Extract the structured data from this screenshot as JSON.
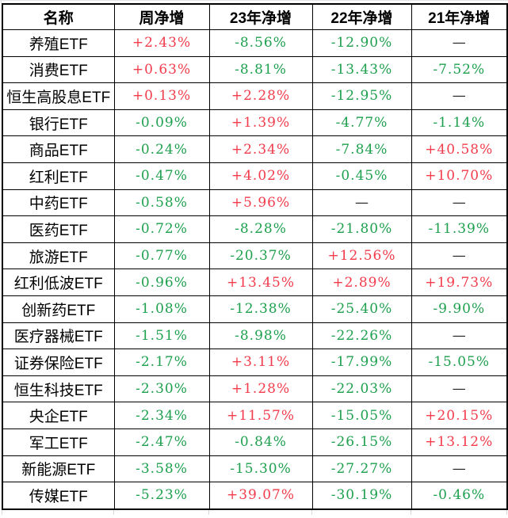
{
  "table": {
    "columns": [
      "名称",
      "周净增",
      "23年净增",
      "22年净增",
      "21年净增"
    ],
    "rows": [
      {
        "name": "养殖ETF",
        "values": [
          {
            "text": "+2.43%",
            "tone": "up"
          },
          {
            "text": "-8.56%",
            "tone": "down"
          },
          {
            "text": "-12.90%",
            "tone": "down"
          },
          {
            "text": "—",
            "tone": "none"
          }
        ]
      },
      {
        "name": "消费ETF",
        "values": [
          {
            "text": "+0.63%",
            "tone": "up"
          },
          {
            "text": "-8.81%",
            "tone": "down"
          },
          {
            "text": "-13.43%",
            "tone": "down"
          },
          {
            "text": "-7.52%",
            "tone": "down"
          }
        ]
      },
      {
        "name": "恒生高股息ETF",
        "values": [
          {
            "text": "+0.13%",
            "tone": "up"
          },
          {
            "text": "+2.28%",
            "tone": "up"
          },
          {
            "text": "-12.95%",
            "tone": "down"
          },
          {
            "text": "—",
            "tone": "none"
          }
        ]
      },
      {
        "name": "银行ETF",
        "values": [
          {
            "text": "-0.09%",
            "tone": "down"
          },
          {
            "text": "+1.39%",
            "tone": "up"
          },
          {
            "text": "-4.77%",
            "tone": "down"
          },
          {
            "text": "-1.14%",
            "tone": "down"
          }
        ]
      },
      {
        "name": "商品ETF",
        "values": [
          {
            "text": "-0.24%",
            "tone": "down"
          },
          {
            "text": "+2.34%",
            "tone": "up"
          },
          {
            "text": "-7.84%",
            "tone": "down"
          },
          {
            "text": "+40.58%",
            "tone": "up"
          }
        ]
      },
      {
        "name": "红利ETF",
        "values": [
          {
            "text": "-0.47%",
            "tone": "down"
          },
          {
            "text": "+4.02%",
            "tone": "up"
          },
          {
            "text": "-0.45%",
            "tone": "down"
          },
          {
            "text": "+10.70%",
            "tone": "up"
          }
        ]
      },
      {
        "name": "中药ETF",
        "values": [
          {
            "text": "-0.58%",
            "tone": "down"
          },
          {
            "text": "+5.96%",
            "tone": "up"
          },
          {
            "text": "—",
            "tone": "none"
          },
          {
            "text": "—",
            "tone": "none"
          }
        ]
      },
      {
        "name": "医药ETF",
        "values": [
          {
            "text": "-0.72%",
            "tone": "down"
          },
          {
            "text": "-8.28%",
            "tone": "down"
          },
          {
            "text": "-21.80%",
            "tone": "down"
          },
          {
            "text": "-11.39%",
            "tone": "down"
          }
        ]
      },
      {
        "name": "旅游ETF",
        "values": [
          {
            "text": "-0.77%",
            "tone": "down"
          },
          {
            "text": "-20.37%",
            "tone": "down"
          },
          {
            "text": "+12.56%",
            "tone": "up"
          },
          {
            "text": "—",
            "tone": "none"
          }
        ]
      },
      {
        "name": "红利低波ETF",
        "values": [
          {
            "text": "-0.96%",
            "tone": "down"
          },
          {
            "text": "+13.45%",
            "tone": "up"
          },
          {
            "text": "+2.89%",
            "tone": "up"
          },
          {
            "text": "+19.73%",
            "tone": "up"
          }
        ]
      },
      {
        "name": "创新药ETF",
        "values": [
          {
            "text": "-1.08%",
            "tone": "down"
          },
          {
            "text": "-12.38%",
            "tone": "down"
          },
          {
            "text": "-25.40%",
            "tone": "down"
          },
          {
            "text": "-9.90%",
            "tone": "down"
          }
        ]
      },
      {
        "name": "医疗器械ETF",
        "values": [
          {
            "text": "-1.51%",
            "tone": "down"
          },
          {
            "text": "-8.98%",
            "tone": "down"
          },
          {
            "text": "-22.26%",
            "tone": "down"
          },
          {
            "text": "—",
            "tone": "none"
          }
        ]
      },
      {
        "name": "证券保险ETF",
        "values": [
          {
            "text": "-2.17%",
            "tone": "down"
          },
          {
            "text": "+3.11%",
            "tone": "up"
          },
          {
            "text": "-17.99%",
            "tone": "down"
          },
          {
            "text": "-15.05%",
            "tone": "down"
          }
        ]
      },
      {
        "name": "恒生科技ETF",
        "values": [
          {
            "text": "-2.30%",
            "tone": "down"
          },
          {
            "text": "+1.28%",
            "tone": "up"
          },
          {
            "text": "-22.03%",
            "tone": "down"
          },
          {
            "text": "—",
            "tone": "none"
          }
        ]
      },
      {
        "name": "央企ETF",
        "values": [
          {
            "text": "-2.34%",
            "tone": "down"
          },
          {
            "text": "+11.57%",
            "tone": "up"
          },
          {
            "text": "-15.05%",
            "tone": "down"
          },
          {
            "text": "+20.15%",
            "tone": "up"
          }
        ]
      },
      {
        "name": "军工ETF",
        "values": [
          {
            "text": "-2.47%",
            "tone": "down"
          },
          {
            "text": "-0.84%",
            "tone": "down"
          },
          {
            "text": "-26.15%",
            "tone": "down"
          },
          {
            "text": "+13.12%",
            "tone": "up"
          }
        ]
      },
      {
        "name": "新能源ETF",
        "values": [
          {
            "text": "-3.58%",
            "tone": "down"
          },
          {
            "text": "-15.30%",
            "tone": "down"
          },
          {
            "text": "-27.27%",
            "tone": "down"
          },
          {
            "text": "—",
            "tone": "none"
          }
        ]
      },
      {
        "name": "传媒ETF",
        "values": [
          {
            "text": "-5.23%",
            "tone": "down"
          },
          {
            "text": "+39.07%",
            "tone": "up"
          },
          {
            "text": "-30.19%",
            "tone": "down"
          },
          {
            "text": "-0.46%",
            "tone": "down"
          }
        ]
      }
    ]
  },
  "colors": {
    "positive_red": "#f23b4b",
    "negative_green": "#1ea04e",
    "neutral_text": "#1a1a1a",
    "table_border": "#000000",
    "sheet_gridline": "#d9d9d9"
  }
}
